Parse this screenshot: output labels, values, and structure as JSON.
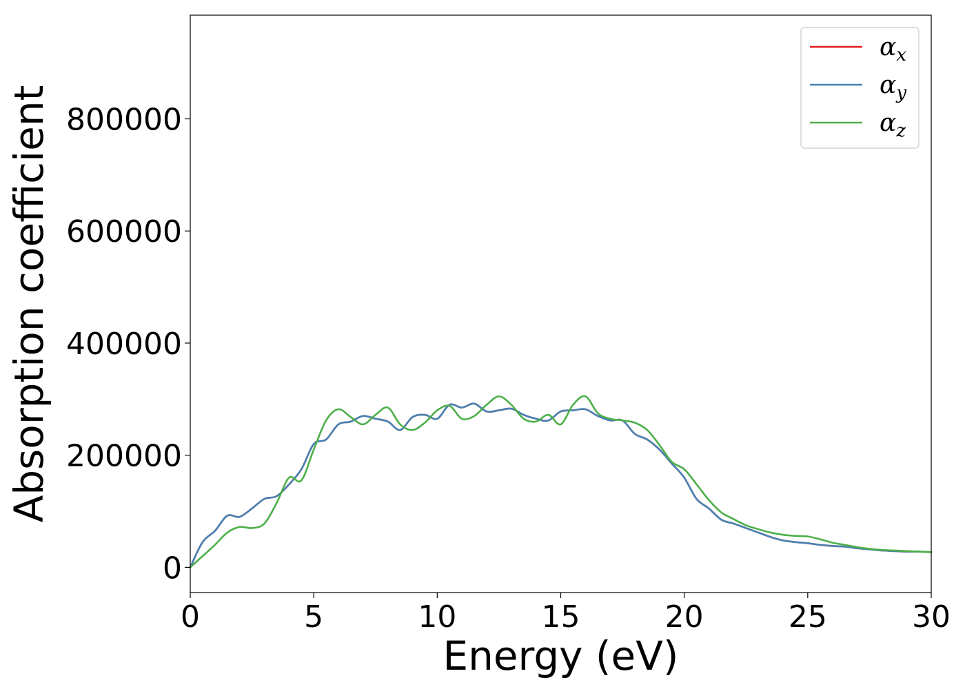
{
  "chart_data": {
    "type": "line",
    "xlabel": "Energy (eV)",
    "ylabel": "Absorption coefficient",
    "xlim": [
      0,
      30
    ],
    "ylim": [
      -45000,
      985000
    ],
    "xticks": [
      0,
      5,
      10,
      15,
      20,
      25,
      30
    ],
    "yticks": [
      0,
      200000,
      400000,
      600000,
      800000
    ],
    "grid": false,
    "legend_position": "top-right",
    "series": [
      {
        "name": "α",
        "subscript": "x",
        "color": "#e41a1c",
        "x": [
          0,
          0.5,
          1,
          1.5,
          2,
          2.5,
          3,
          3.5,
          4,
          4.5,
          5,
          5.5,
          6,
          6.5,
          7,
          7.5,
          8,
          8.5,
          9,
          9.5,
          10,
          10.5,
          11,
          11.5,
          12,
          12.5,
          13,
          13.5,
          14,
          14.5,
          15,
          15.5,
          16,
          16.5,
          17,
          17.5,
          18,
          18.5,
          19,
          19.5,
          20,
          20.5,
          21,
          21.5,
          22,
          22.5,
          23,
          23.5,
          24,
          24.5,
          25,
          25.5,
          26,
          26.5,
          27,
          27.5,
          28,
          28.5,
          29,
          29.5,
          30
        ],
        "y": [
          0,
          45000,
          65000,
          92000,
          90000,
          105000,
          122000,
          127000,
          148000,
          175000,
          220000,
          228000,
          255000,
          260000,
          270000,
          265000,
          260000,
          245000,
          268000,
          272000,
          265000,
          290000,
          285000,
          292000,
          278000,
          280000,
          283000,
          272000,
          265000,
          262000,
          278000,
          280000,
          282000,
          270000,
          262000,
          262000,
          238000,
          228000,
          210000,
          185000,
          160000,
          122000,
          105000,
          85000,
          78000,
          70000,
          62000,
          54000,
          48000,
          45000,
          43000,
          40000,
          38000,
          37000,
          34000,
          32000,
          30000,
          29000,
          28000,
          28000,
          27000
        ]
      },
      {
        "name": "α",
        "subscript": "y",
        "color": "#4682b4",
        "x": [
          0,
          0.5,
          1,
          1.5,
          2,
          2.5,
          3,
          3.5,
          4,
          4.5,
          5,
          5.5,
          6,
          6.5,
          7,
          7.5,
          8,
          8.5,
          9,
          9.5,
          10,
          10.5,
          11,
          11.5,
          12,
          12.5,
          13,
          13.5,
          14,
          14.5,
          15,
          15.5,
          16,
          16.5,
          17,
          17.5,
          18,
          18.5,
          19,
          19.5,
          20,
          20.5,
          21,
          21.5,
          22,
          22.5,
          23,
          23.5,
          24,
          24.5,
          25,
          25.5,
          26,
          26.5,
          27,
          27.5,
          28,
          28.5,
          29,
          29.5,
          30
        ],
        "y": [
          0,
          45000,
          65000,
          92000,
          90000,
          105000,
          122000,
          127000,
          148000,
          175000,
          220000,
          228000,
          255000,
          260000,
          270000,
          265000,
          260000,
          245000,
          268000,
          272000,
          265000,
          290000,
          285000,
          292000,
          278000,
          280000,
          283000,
          272000,
          265000,
          262000,
          278000,
          280000,
          282000,
          270000,
          262000,
          262000,
          238000,
          228000,
          210000,
          185000,
          160000,
          122000,
          105000,
          85000,
          78000,
          70000,
          62000,
          54000,
          48000,
          45000,
          43000,
          40000,
          38000,
          37000,
          34000,
          32000,
          30000,
          29000,
          28000,
          28000,
          27000
        ]
      },
      {
        "name": "α",
        "subscript": "z",
        "color": "#4daf4a",
        "x": [
          0,
          0.5,
          1,
          1.5,
          2,
          2.5,
          3,
          3.5,
          4,
          4.5,
          5,
          5.5,
          6,
          6.5,
          7,
          7.5,
          8,
          8.5,
          9,
          9.5,
          10,
          10.5,
          11,
          11.5,
          12,
          12.5,
          13,
          13.5,
          14,
          14.5,
          15,
          15.5,
          16,
          16.5,
          17,
          17.5,
          18,
          18.5,
          19,
          19.5,
          20,
          20.5,
          21,
          21.5,
          22,
          22.5,
          23,
          23.5,
          24,
          24.5,
          25,
          25.5,
          26,
          26.5,
          27,
          27.5,
          28,
          28.5,
          29,
          29.5,
          30
        ],
        "y": [
          0,
          20000,
          40000,
          62000,
          72000,
          70000,
          78000,
          115000,
          160000,
          155000,
          210000,
          262000,
          282000,
          268000,
          255000,
          272000,
          285000,
          255000,
          245000,
          258000,
          280000,
          288000,
          265000,
          270000,
          290000,
          305000,
          290000,
          265000,
          260000,
          272000,
          255000,
          290000,
          305000,
          275000,
          265000,
          262000,
          258000,
          245000,
          218000,
          188000,
          175000,
          148000,
          120000,
          98000,
          86000,
          75000,
          68000,
          62000,
          58000,
          56000,
          55000,
          50000,
          44000,
          40000,
          36000,
          33000,
          31000,
          30000,
          29000,
          28000,
          27000
        ]
      }
    ]
  }
}
